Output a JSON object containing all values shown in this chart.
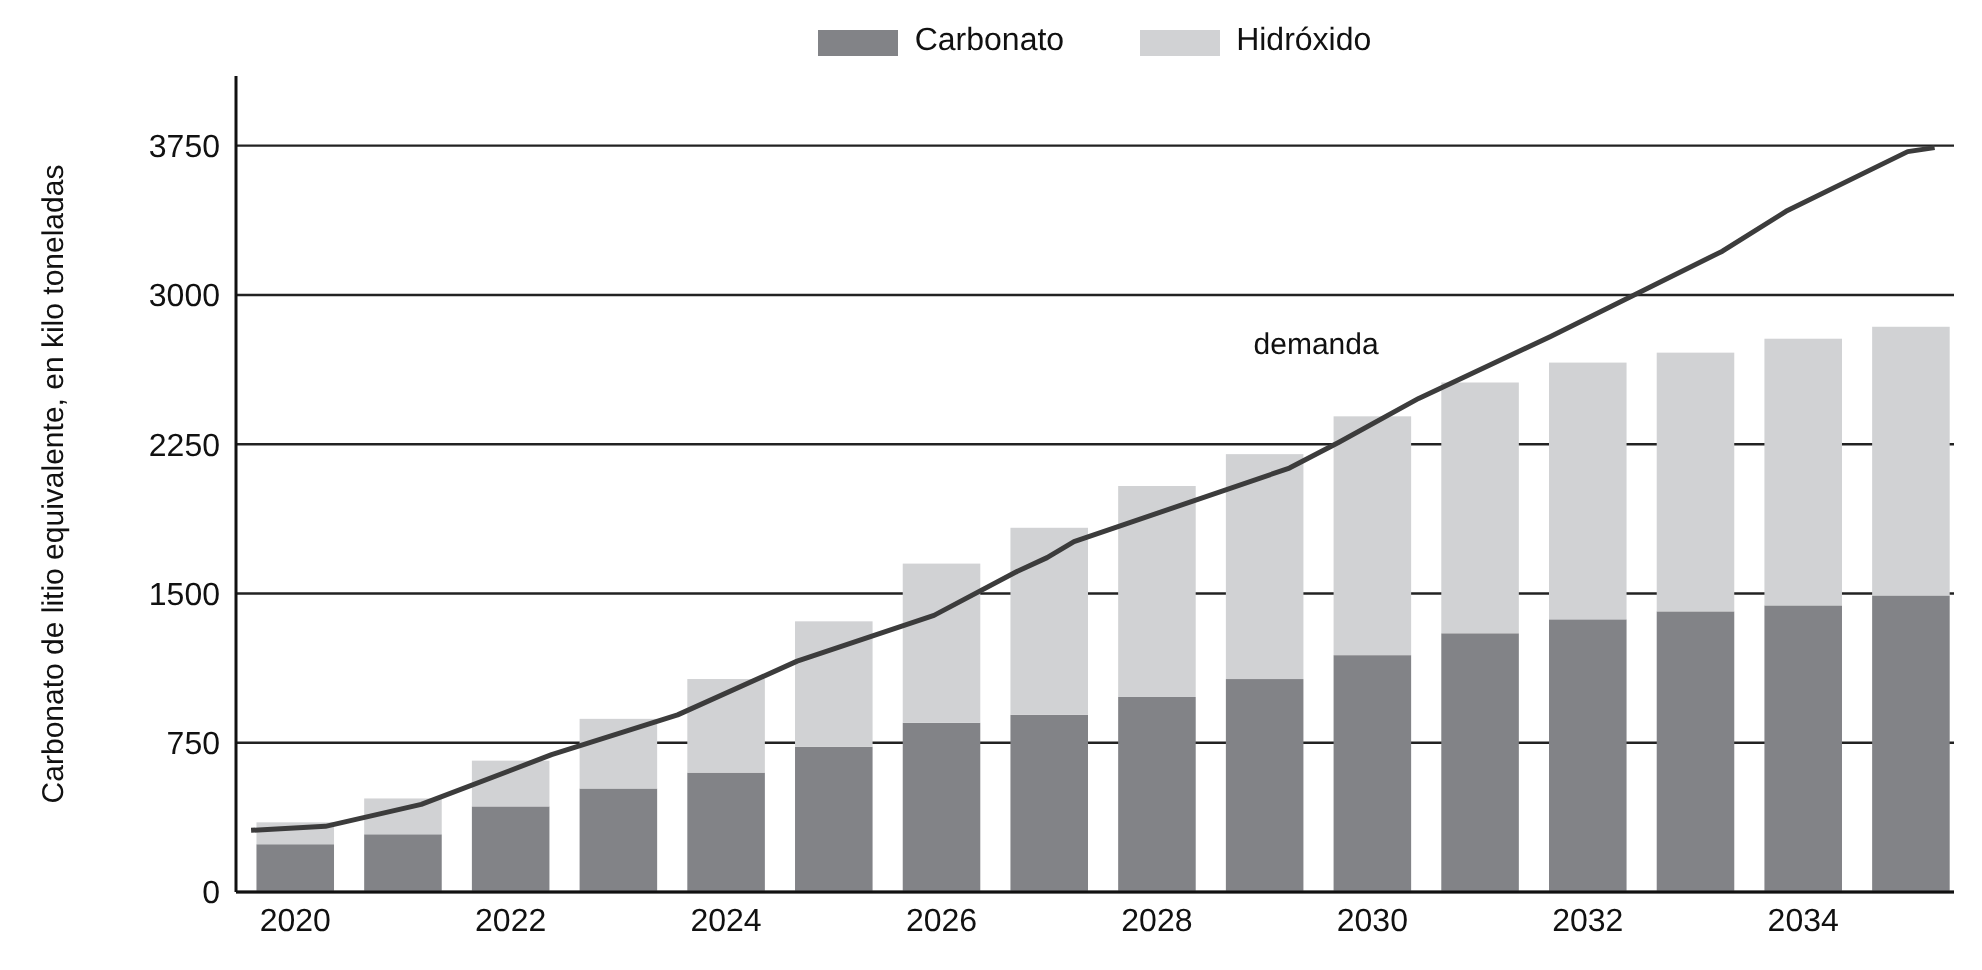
{
  "chart_data": {
    "type": "bar",
    "ylabel": "Carbonato de litio equivalente, en kilo toneladas",
    "x": [
      2020,
      2021,
      2022,
      2023,
      2024,
      2025,
      2026,
      2027,
      2028,
      2029,
      2030,
      2031,
      2032,
      2033,
      2034,
      2035
    ],
    "stacked": true,
    "series": [
      {
        "name": "Carbonato",
        "color": "#828387",
        "values": [
          240,
          290,
          430,
          520,
          600,
          730,
          850,
          890,
          980,
          1070,
          1190,
          1300,
          1370,
          1410,
          1440,
          1490
        ]
      },
      {
        "name": "Hidróxido",
        "color": "#d1d2d4",
        "values": [
          110,
          180,
          230,
          350,
          470,
          630,
          800,
          940,
          1060,
          1130,
          1200,
          1260,
          1290,
          1300,
          1340,
          1350
        ]
      },
      {
        "name": "demanda",
        "type": "line",
        "color": "#3c3c3c",
        "x": [
          2019.59,
          2020.28,
          2021.17,
          2022.38,
          2023.55,
          2024.66,
          2025.93,
          2026.7,
          2026.98,
          2027.23,
          2029.23,
          2029.69,
          2030.43,
          2031.65,
          2033.25,
          2033.84,
          2034.97,
          2035.22
        ],
        "values": [
          310,
          330,
          440,
          690,
          890,
          1160,
          1390,
          1610,
          1680,
          1760,
          2130,
          2260,
          2480,
          2790,
          3220,
          3420,
          3720,
          3740
        ]
      }
    ],
    "xlim": [
      2019.45,
      2035.4
    ],
    "xticks": [
      2020,
      2022,
      2024,
      2026,
      2028,
      2030,
      2032,
      2034
    ],
    "ylim": [
      0,
      4100
    ],
    "yticks": [
      0,
      750,
      1500,
      2250,
      3000,
      3750
    ],
    "grid": "y",
    "legend": "top"
  }
}
